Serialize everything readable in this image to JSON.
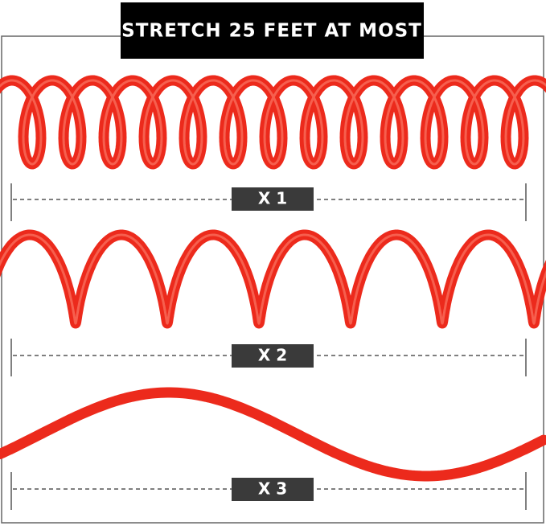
{
  "header": {
    "title": "STRETCH 25 FEET AT MOST"
  },
  "rows": [
    {
      "label": "X 1"
    },
    {
      "label": "X 2"
    },
    {
      "label": "X 3"
    }
  ]
}
